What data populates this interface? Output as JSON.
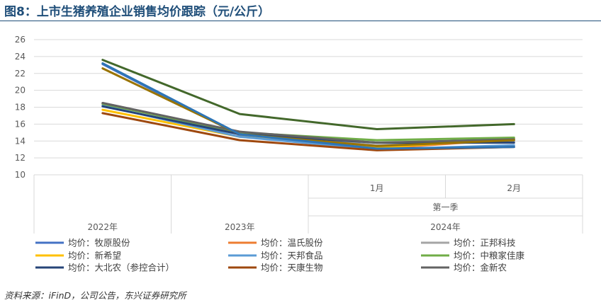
{
  "figure": {
    "title": "图8：上市生猪养殖企业销售均价跟踪（元/公斤）",
    "source": "资料来源：iFinD，公司公告，东兴证券研究所"
  },
  "chart_data": {
    "type": "line",
    "title": "图8：上市生猪养殖企业销售均价跟踪（元/公斤）",
    "xlabel": "",
    "ylabel": "",
    "ylim": [
      10,
      26
    ],
    "yticks": [
      10,
      12,
      14,
      16,
      18,
      20,
      22,
      24,
      26
    ],
    "grid": true,
    "legend_position": "bottom",
    "categories": [
      "2022年",
      "2023年",
      "2024年 第一季 1月",
      "2024年 第一季 2月"
    ],
    "axis_levels": {
      "level1": [
        "",
        "",
        "1月",
        "2月"
      ],
      "level2": [
        "",
        "",
        "第一季",
        "第一季"
      ],
      "level2_label": "第一季",
      "level3": [
        "2022年",
        "2023年",
        "2024年",
        "2024年"
      ]
    },
    "series": [
      {
        "name": "均价：牧原股份",
        "color": "#4472c4",
        "values": [
          23.1,
          14.7,
          13.0,
          13.3
        ]
      },
      {
        "name": "均价：温氏股份",
        "color": "#ed7d31",
        "values": [
          18.4,
          15.1,
          13.1,
          14.2
        ]
      },
      {
        "name": "均价：正邦科技",
        "color": "#a5a5a5",
        "values": [
          18.5,
          15.0,
          13.5,
          14.0
        ]
      },
      {
        "name": "均价：新希望",
        "color": "#ffc000",
        "values": [
          17.7,
          14.5,
          13.2,
          14.3
        ]
      },
      {
        "name": "均价：天邦食品",
        "color": "#5b9bd5",
        "values": [
          18.2,
          14.5,
          13.0,
          13.5
        ]
      },
      {
        "name": "均价：中粮家佳康",
        "color": "#70ad47",
        "values": [
          18.4,
          15.0,
          14.1,
          14.4
        ]
      },
      {
        "name": "均价：大北农（参控合计）",
        "color": "#264478",
        "values": [
          18.1,
          14.8,
          13.8,
          13.8
        ]
      },
      {
        "name": "均价：天康生物",
        "color": "#9e480e",
        "values": [
          17.3,
          14.1,
          12.9,
          13.3
        ]
      },
      {
        "name": "均价：金新农",
        "color": "#636363",
        "values": [
          18.5,
          15.1,
          13.8,
          14.2
        ]
      },
      {
        "name": "",
        "color": "#43682b",
        "values": [
          23.6,
          17.2,
          15.4,
          16.0
        ]
      },
      {
        "name": "",
        "color": "#997300",
        "values": [
          22.6,
          14.8,
          13.4,
          14.1
        ]
      },
      {
        "name": "",
        "color": "#2e75b6",
        "values": [
          23.2,
          14.8,
          13.1,
          13.3
        ]
      }
    ]
  }
}
